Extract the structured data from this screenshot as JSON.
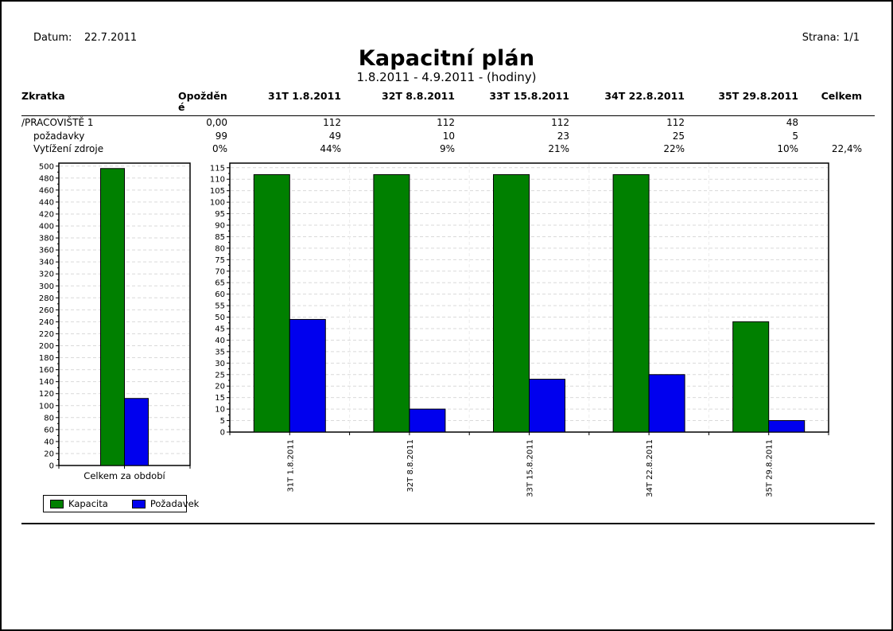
{
  "header": {
    "date_label": "Datum:",
    "date_value": "22.7.2011",
    "page_label": "Strana: 1/1",
    "title": "Kapacitní plán",
    "subtitle": "1.8.2011 - 4.9.2011 - (hodiny)"
  },
  "table": {
    "columns": [
      "Zkratka",
      "Opožděn\né",
      "31T 1.8.2011",
      "32T 8.8.2011",
      "33T 15.8.2011",
      "34T 22.8.2011",
      "35T 29.8.2011",
      "Celkem"
    ],
    "rows": [
      {
        "label": "/PRACOVIŠTĚ 1",
        "values": [
          "0,00",
          "112",
          "112",
          "112",
          "112",
          "48",
          ""
        ]
      },
      {
        "label": "požadavky",
        "values": [
          "99",
          "49",
          "10",
          "23",
          "25",
          "5",
          ""
        ]
      },
      {
        "label": "Vytížení zdroje",
        "values": [
          "0%",
          "44%",
          "9%",
          "21%",
          "22%",
          "10%",
          "22,4%"
        ]
      }
    ]
  },
  "colors": {
    "capacity": "#008000",
    "demand": "#0000ee",
    "grid": "#d9d9d9",
    "axis": "#000000"
  },
  "chart_data": [
    {
      "type": "bar",
      "title": "",
      "categories": [
        "Celkem za období"
      ],
      "series": [
        {
          "name": "Kapacita",
          "values": [
            496
          ],
          "color": "#008000"
        },
        {
          "name": "Požadavek",
          "values": [
            112
          ],
          "color": "#0000ee"
        }
      ],
      "xlabel": "",
      "ylabel": "",
      "ylim": [
        0,
        505
      ],
      "ytick_step": 20,
      "grid": true,
      "legend_position": "bottom"
    },
    {
      "type": "bar",
      "title": "",
      "categories": [
        "31T 1.8.2011",
        "32T 8.8.2011",
        "33T 15.8.2011",
        "34T 22.8.2011",
        "35T 29.8.2011"
      ],
      "series": [
        {
          "name": "Kapacita",
          "values": [
            112,
            112,
            112,
            112,
            48
          ],
          "color": "#008000"
        },
        {
          "name": "Požadavek",
          "values": [
            49,
            10,
            23,
            25,
            5
          ],
          "color": "#0000ee"
        }
      ],
      "xlabel": "",
      "ylabel": "",
      "ylim": [
        0,
        117
      ],
      "ytick_step": 5,
      "grid": true,
      "x_label_rotation": -90,
      "legend_position": "none"
    }
  ]
}
